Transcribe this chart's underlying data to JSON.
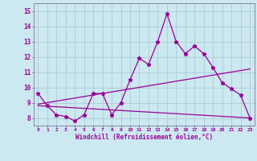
{
  "xlabel": "Windchill (Refroidissement éolien,°C)",
  "background_color": "#cce8f0",
  "line_color": "#990099",
  "xlim": [
    -0.5,
    23.5
  ],
  "ylim": [
    7.5,
    15.5
  ],
  "xtick_labels": [
    "0",
    "1",
    "2",
    "3",
    "4",
    "5",
    "6",
    "7",
    "8",
    "9",
    "10",
    "11",
    "12",
    "13",
    "14",
    "15",
    "16",
    "17",
    "18",
    "19",
    "20",
    "21",
    "22",
    "23"
  ],
  "ytick_labels": [
    "8",
    "9",
    "10",
    "11",
    "12",
    "13",
    "14",
    "15"
  ],
  "ytick_vals": [
    8,
    9,
    10,
    11,
    12,
    13,
    14,
    15
  ],
  "main_series_x": [
    0,
    1,
    2,
    3,
    4,
    5,
    6,
    7,
    8,
    9,
    10,
    11,
    12,
    13,
    14,
    15,
    16,
    17,
    18,
    19,
    20,
    21,
    22,
    23
  ],
  "main_series_y": [
    9.6,
    8.8,
    8.2,
    8.1,
    7.8,
    8.2,
    9.6,
    9.6,
    8.2,
    9.0,
    10.5,
    11.9,
    11.5,
    13.0,
    14.8,
    13.0,
    12.2,
    12.7,
    12.2,
    11.3,
    10.3,
    9.9,
    9.5,
    8.0
  ],
  "lower_line_x": [
    0,
    23
  ],
  "lower_line_y": [
    8.8,
    8.0
  ],
  "upper_line_x": [
    0,
    23
  ],
  "upper_line_y": [
    8.9,
    11.2
  ],
  "grid_color": "#aaccd8",
  "spine_color": "#7a7a9a"
}
